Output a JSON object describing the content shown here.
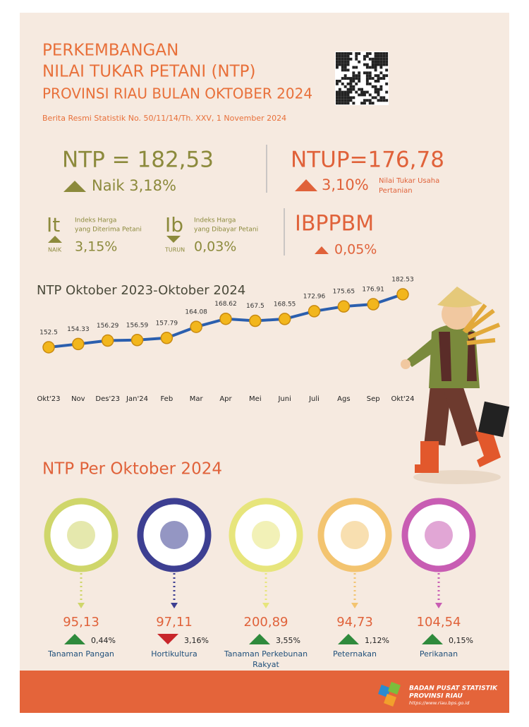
{
  "header": {
    "title_lines": [
      "PERKEMBANGAN",
      "NILAI TUKAR PETANI (NTP)",
      "PROVINSI RIAU BULAN OKTOBER 2024"
    ],
    "subtitle": "Berita Resmi Statistik No. 50/11/14/Th. XXV, 1 November 2024"
  },
  "ntp": {
    "label": "NTP = 182,53",
    "change": "Naik 3,18%"
  },
  "ntup": {
    "label": "NTUP=176,78",
    "change": "3,10%",
    "note": [
      "Nilai Tukar Usaha",
      "Pertanian"
    ]
  },
  "it": {
    "symbol": "It",
    "desc": [
      "Indeks Harga",
      "yang Diterima Petani"
    ],
    "status": "NAIK",
    "change": "3,15%"
  },
  "ib": {
    "symbol": "Ib",
    "desc": [
      "Indeks Harga",
      "yang Dibayar Petani"
    ],
    "status": "TURUN",
    "change": "0,03%"
  },
  "ibppbm": {
    "label": "IBPPBM",
    "change": "0,05%"
  },
  "chart_data": {
    "type": "line",
    "title": "NTP Oktober 2023-Oktober 2024",
    "categories": [
      "Okt'23",
      "Nov",
      "Des'23",
      "Jan'24",
      "Feb",
      "Mar",
      "Apr",
      "Mei",
      "Juni",
      "Juli",
      "Ags",
      "Sep",
      "Okt'24"
    ],
    "values": [
      152.5,
      154.33,
      156.29,
      156.59,
      157.79,
      164.08,
      168.62,
      167.5,
      168.55,
      172.96,
      175.65,
      176.91,
      182.53
    ],
    "color": "#2b5fae"
  },
  "sectors_title": "NTP Per Oktober 2024",
  "sectors": [
    {
      "name": [
        "Tanaman Pangan"
      ],
      "value": "95,13",
      "change": "0,44%",
      "direction": "up",
      "color": "#cfd66a"
    },
    {
      "name": [
        "Hortikultura"
      ],
      "value": "97,11",
      "change": "3,16%",
      "direction": "down",
      "color": "#3d3f92"
    },
    {
      "name": [
        "Tanaman Perkebunan",
        "Rakyat"
      ],
      "value": "200,89",
      "change": "3,55%",
      "direction": "up",
      "color": "#e7e57c"
    },
    {
      "name": [
        "Peternakan"
      ],
      "value": "94,73",
      "change": "1,12%",
      "direction": "up",
      "color": "#f3c470"
    },
    {
      "name": [
        "Perikanan"
      ],
      "value": "104,54",
      "change": "0,15%",
      "direction": "up",
      "color": "#c85db3"
    }
  ],
  "footer": {
    "lines": [
      "BADAN PUSAT STATISTIK",
      "PROVINSI RIAU",
      "https://www.riau.bps.go.id"
    ]
  }
}
